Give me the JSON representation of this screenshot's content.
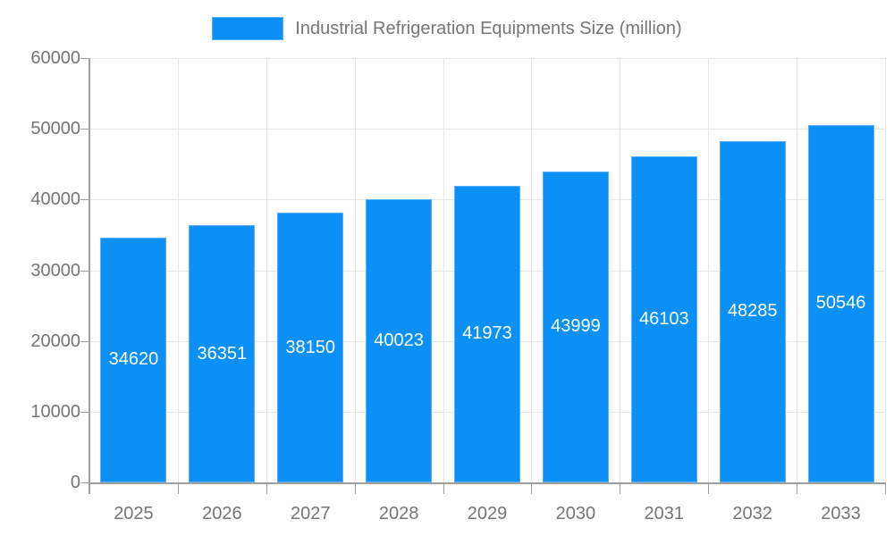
{
  "chart_data": {
    "type": "bar",
    "title": "Industrial Refrigeration Equipments Size (million)",
    "legend": {
      "position": "top",
      "entries": [
        "Industrial Refrigeration Equipments Size (million)"
      ]
    },
    "categories": [
      "2025",
      "2026",
      "2027",
      "2028",
      "2029",
      "2030",
      "2031",
      "2032",
      "2033"
    ],
    "values": [
      34620,
      36351,
      38150,
      40023,
      41973,
      43999,
      46103,
      48285,
      50546
    ],
    "value_labels": "inside-center-white",
    "xlabel": "",
    "ylabel": "",
    "ylim": [
      0,
      60000
    ],
    "y_ticks": [
      0,
      10000,
      20000,
      30000,
      40000,
      50000,
      60000
    ],
    "grid": "horizontal-and-vertical"
  },
  "colors": {
    "background": "#ffffff",
    "bar_fill": "#0b90f8",
    "bar_border": "#5bb0f9",
    "grid_line": "#e6e6e6",
    "axis_line": "#9e9e9e",
    "tick_text": "#757575",
    "value_label_text": "#ffffff"
  }
}
